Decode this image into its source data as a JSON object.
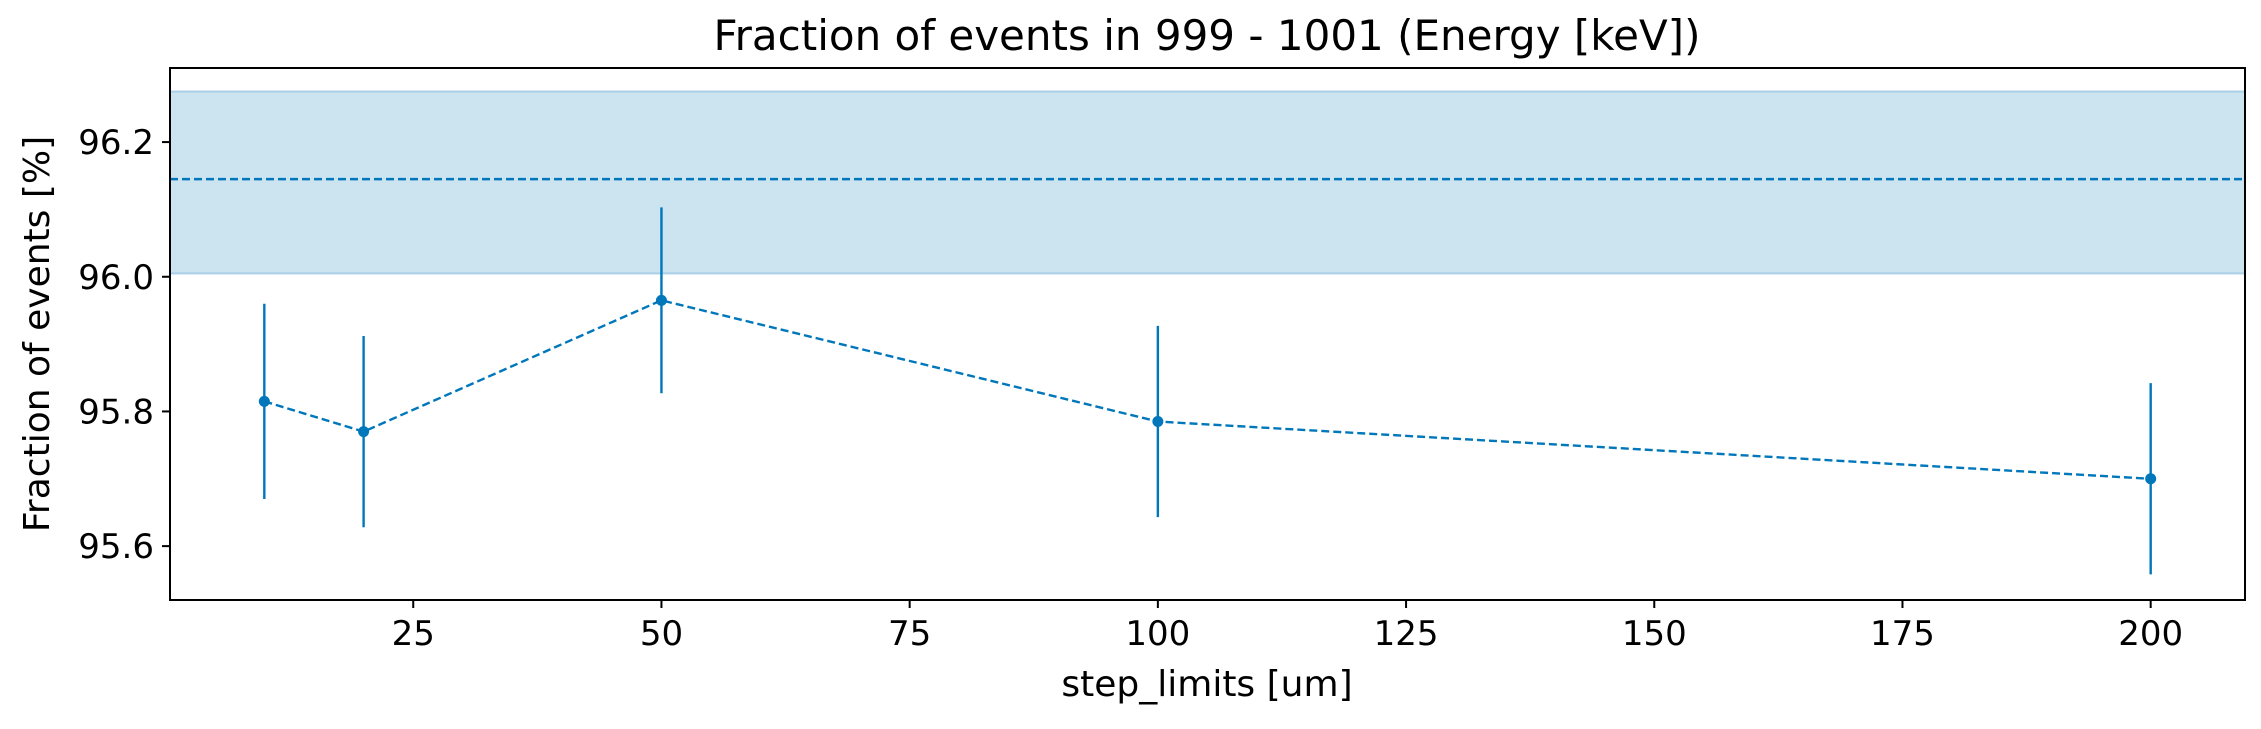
{
  "chart_data": {
    "type": "line",
    "title": "Fraction of events in 999 - 1001 (Energy [keV])",
    "xlabel": "step_limits [um]",
    "ylabel": "Fraction of events [%]",
    "xlim": [
      0.5,
      209.5
    ],
    "ylim": [
      95.52,
      96.31
    ],
    "xticks": [
      25,
      50,
      75,
      100,
      125,
      150,
      175,
      200
    ],
    "xtick_labels": [
      "25",
      "50",
      "75",
      "100",
      "125",
      "150",
      "175",
      "200"
    ],
    "yticks": [
      95.6,
      95.8,
      96.0,
      96.2
    ],
    "ytick_labels": [
      "95.6",
      "95.8",
      "96.0",
      "96.2"
    ],
    "grid": false,
    "series": [
      {
        "x": [
          10,
          20,
          50,
          100,
          200
        ],
        "y": [
          95.815,
          95.77,
          95.965,
          95.785,
          95.7
        ],
        "yerr": [
          0.145,
          0.142,
          0.138,
          0.142,
          0.142
        ],
        "color": "#0077bb",
        "linestyle": "dashed",
        "marker": "circle"
      }
    ],
    "reference": {
      "value": 96.145,
      "band": [
        96.005,
        96.275
      ],
      "line_color": "#0077bb",
      "band_color": "#cce3f0"
    }
  }
}
